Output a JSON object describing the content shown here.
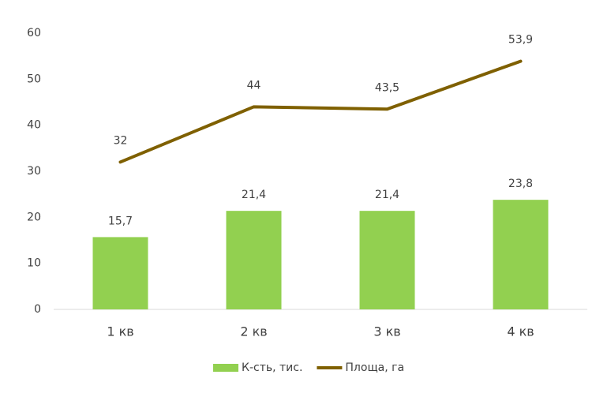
{
  "chart_data": {
    "type": "combo",
    "categories": [
      "1 кв",
      "2 кв",
      "3 кв",
      "4 кв"
    ],
    "series": [
      {
        "name": "К-сть, тис.",
        "type": "bar",
        "color": "#92d050",
        "values": [
          15.7,
          21.4,
          21.4,
          23.8
        ],
        "value_labels": [
          "15,7",
          "21,4",
          "21,4",
          "23,8"
        ]
      },
      {
        "name": "Площа, га",
        "type": "line",
        "color": "#7f6000",
        "values": [
          32,
          44,
          43.5,
          53.9
        ],
        "value_labels": [
          "32",
          "44",
          "43,5",
          "53,9"
        ]
      }
    ],
    "ylim": [
      0,
      60
    ],
    "yticks": [
      0,
      10,
      20,
      30,
      40,
      50,
      60
    ],
    "grid": false,
    "legend": "bottom"
  }
}
